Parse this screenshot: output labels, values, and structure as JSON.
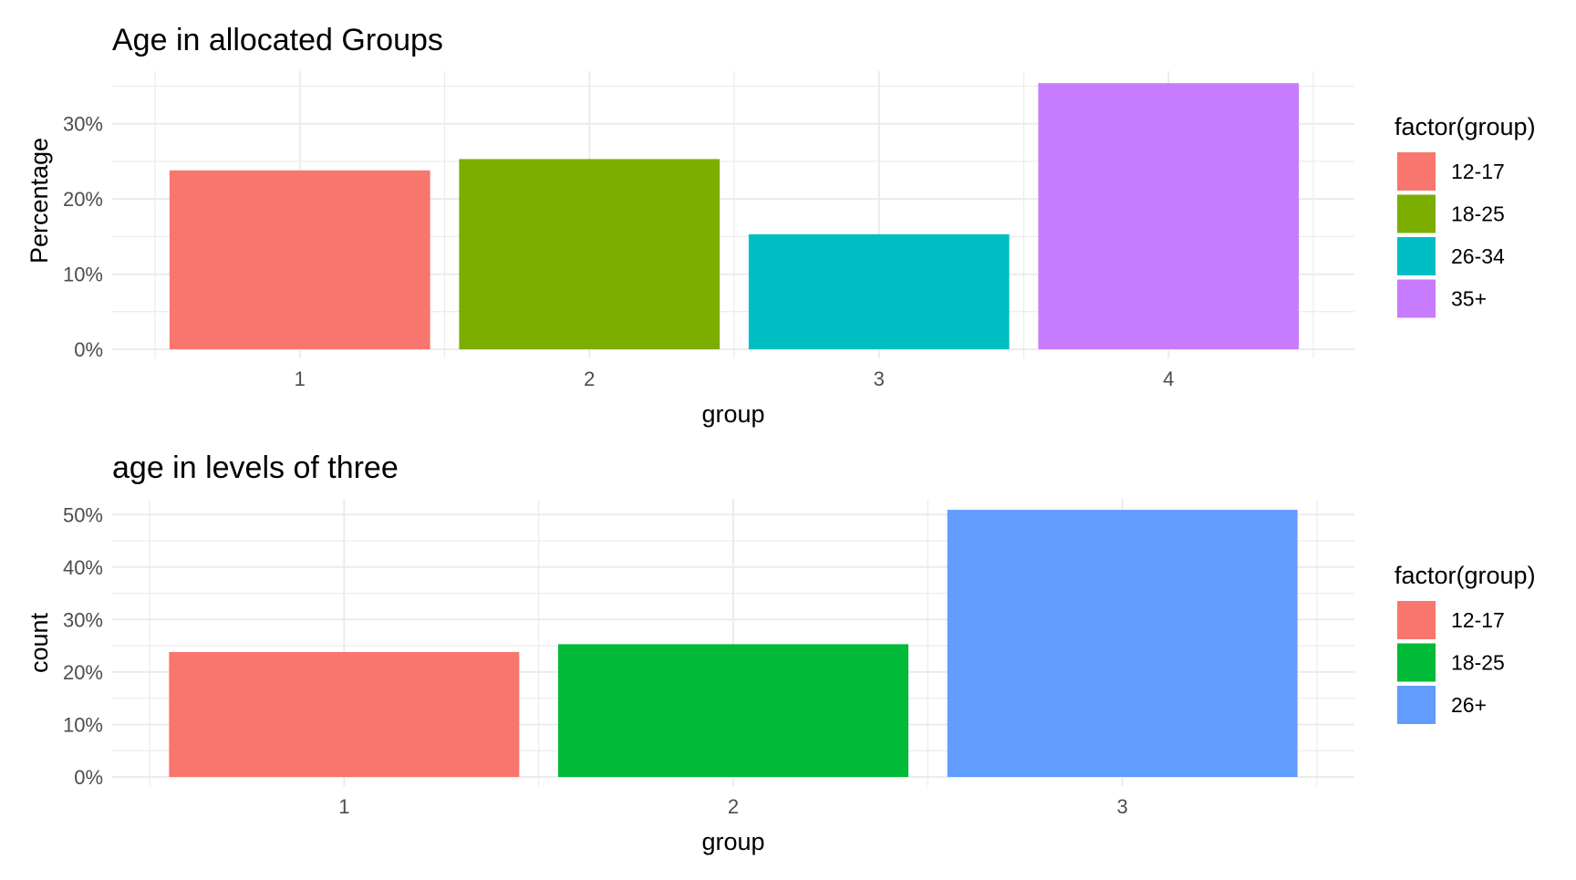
{
  "chart_data": [
    {
      "type": "bar",
      "title": "Age in allocated Groups",
      "xlabel": "group",
      "ylabel": "Percentage",
      "categories": [
        "1",
        "2",
        "3",
        "4"
      ],
      "values": [
        23.8,
        25.3,
        15.3,
        35.4
      ],
      "value_unit": "%",
      "ylim": [
        0,
        37
      ],
      "yticks": [
        0,
        10,
        20,
        30
      ],
      "ytick_labels": [
        "0%",
        "10%",
        "20%",
        "30%"
      ],
      "grid": true,
      "legend": {
        "title": "factor(group)",
        "position": "right",
        "entries": [
          "12-17",
          "18-25",
          "26-34",
          "35+"
        ]
      },
      "colors": [
        "#F8766D",
        "#7CAE00",
        "#00BFC4",
        "#C77CFF"
      ]
    },
    {
      "type": "bar",
      "title": "age in levels of three",
      "xlabel": "group",
      "ylabel": "count",
      "categories": [
        "1",
        "2",
        "3"
      ],
      "values": [
        23.8,
        25.3,
        50.9
      ],
      "value_unit": "%",
      "ylim": [
        0,
        53
      ],
      "yticks": [
        0,
        10,
        20,
        30,
        40,
        50
      ],
      "ytick_labels": [
        "0%",
        "10%",
        "20%",
        "30%",
        "40%",
        "50%"
      ],
      "grid": true,
      "legend": {
        "title": "factor(group)",
        "position": "right",
        "entries": [
          "12-17",
          "18-25",
          "26+"
        ]
      },
      "colors": [
        "#F8766D",
        "#00BA38",
        "#619CFF"
      ]
    }
  ]
}
